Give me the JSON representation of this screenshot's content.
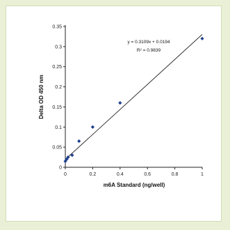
{
  "chart_data": {
    "type": "scatter",
    "xlabel": "m6A Standard (ng/well)",
    "ylabel": "Delta OD 450 nm",
    "xlim": [
      0,
      1
    ],
    "ylim": [
      0,
      0.35
    ],
    "x_ticks": [
      "0",
      "0.2",
      "0.4",
      "0.6",
      "0.8",
      "1"
    ],
    "y_ticks": [
      "0",
      "0.05",
      "0.1",
      "0.15",
      "0.2",
      "0.25",
      "0.3",
      "0.35"
    ],
    "series": [
      {
        "x": [
          0,
          0.01,
          0.02,
          0.05,
          0.1,
          0.2,
          0.4,
          1.0
        ],
        "y": [
          0.015,
          0.02,
          0.025,
          0.03,
          0.065,
          0.1,
          0.16,
          0.32
        ]
      }
    ],
    "trendline": {
      "slope": 0.3109,
      "intercept": 0.0194
    },
    "annotation": {
      "equation": "y = 0.3109x + 0.0194",
      "r_squared": "R² = 0.9839"
    },
    "grid": false,
    "marker_color": "#1f3f8f",
    "line_color": "#333333"
  }
}
